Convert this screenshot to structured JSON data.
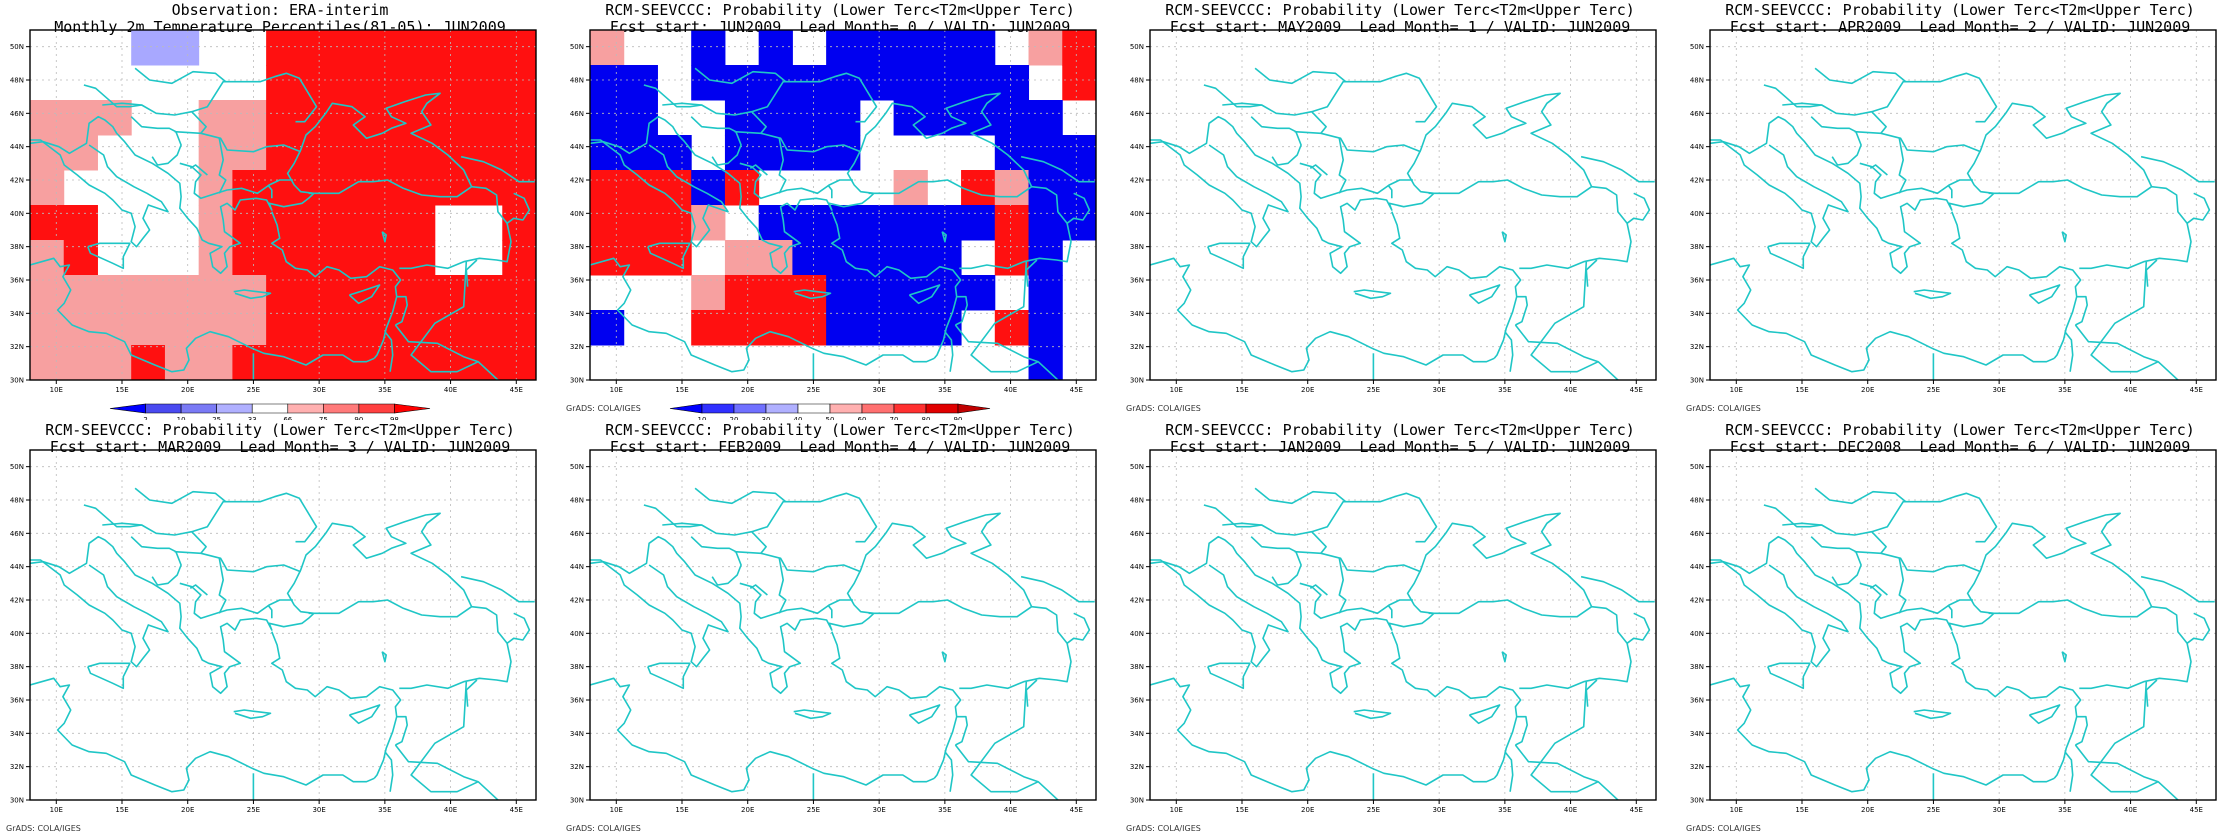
{
  "lon_ticks": [
    "10E",
    "15E",
    "20E",
    "25E",
    "30E",
    "35E",
    "40E",
    "45E"
  ],
  "lat_ticks": [
    "50N",
    "48N",
    "46N",
    "44N",
    "42N",
    "40N",
    "38N",
    "36N",
    "34N",
    "32N",
    "30N"
  ],
  "colors": {
    "coast": "#1fc6c6",
    "grid": "#bbbbbb",
    "frame": "#000000"
  },
  "credit": "GrADS: COLA/IGES",
  "panels": [
    {
      "id": "obs",
      "title1": "Observation: ERA-interim",
      "title2": "Monthly 2m Temperature Percentiles(81-05): JUN2009",
      "colorbar": {
        "labels": [
          "2",
          "10",
          "25",
          "33",
          "66",
          "75",
          "90",
          "98"
        ],
        "colors": [
          "#0000ff",
          "#4a4af0",
          "#7a7af5",
          "#b0b0ff",
          "#ffffff",
          "#ffb0b0",
          "#ff7a7a",
          "#ff4040",
          "#ff0000"
        ]
      },
      "grid_rows": [
        "wwwbbwwRRRRRRRR",
        "wwwwwwwRRRRRRRR",
        "pppwwppRRRRRRRR",
        "ppwwwppRRRRRRRR",
        "pwwwwpRRRRRRRRR",
        "RRwwwpRRRRRRwwR",
        "pRwwwpRRRRRRwwR",
        "pppppppRRRRRRRR",
        "pppppppRRRRRRRR",
        "pppRppRRRRRRRRR"
      ]
    },
    {
      "id": "lead0",
      "title1": "RCM-SEEVCCC: Probability (Lower Terc<T2m<Upper Terc)",
      "title2": "Fcst start: JUN2009  Lead Month= 0 / VALID: JUN2009",
      "colorbar": {
        "labels": [
          "10",
          "20",
          "30",
          "40",
          "50",
          "60",
          "70",
          "80",
          "90"
        ],
        "colors": [
          "#0000ff",
          "#3030ff",
          "#7070ff",
          "#b0b0ff",
          "#ffffff",
          "#ffb0b0",
          "#ff7070",
          "#ff3030",
          "#e00000",
          "#c00000"
        ]
      },
      "grid_rows": [
        "pwwBwBwBBBBBwpR",
        "BBwBBBBBBBBBBwR",
        "BBwwBBBBwBBBBBw",
        "BBBwBBBBwwwwBBB",
        "RRRBRwwwwpwRpBB",
        "RRRpwBBBBBBBRBB",
        "RRRwppBBBBBwRBw",
        "wwwpRRRBBBBBwBw",
        "BwwRRRRBBBBwRBw",
        "wwwwwwwwwwwwwBw"
      ]
    },
    {
      "id": "lead1",
      "title1": "RCM-SEEVCCC: Probability (Lower Terc<T2m<Upper Terc)",
      "title2": "Fcst start: MAY2009  Lead Month= 1 / VALID: JUN2009"
    },
    {
      "id": "lead2",
      "title1": "RCM-SEEVCCC: Probability (Lower Terc<T2m<Upper Terc)",
      "title2": "Fcst start: APR2009  Lead Month= 2 / VALID: JUN2009"
    },
    {
      "id": "lead3",
      "title1": "RCM-SEEVCCC: Probability (Lower Terc<T2m<Upper Terc)",
      "title2": "Fcst start: MAR2009  Lead Month= 3 / VALID: JUN2009"
    },
    {
      "id": "lead4",
      "title1": "RCM-SEEVCCC: Probability (Lower Terc<T2m<Upper Terc)",
      "title2": "Fcst start: FEB2009  Lead Month= 4 / VALID: JUN2009"
    },
    {
      "id": "lead5",
      "title1": "RCM-SEEVCCC: Probability (Lower Terc<T2m<Upper Terc)",
      "title2": "Fcst start: JAN2009  Lead Month= 5 / VALID: JUN2009"
    },
    {
      "id": "lead6",
      "title1": "RCM-SEEVCCC: Probability (Lower Terc<T2m<Upper Terc)",
      "title2": "Fcst start: DEC2008  Lead Month= 6 / VALID: JUN2009"
    }
  ]
}
